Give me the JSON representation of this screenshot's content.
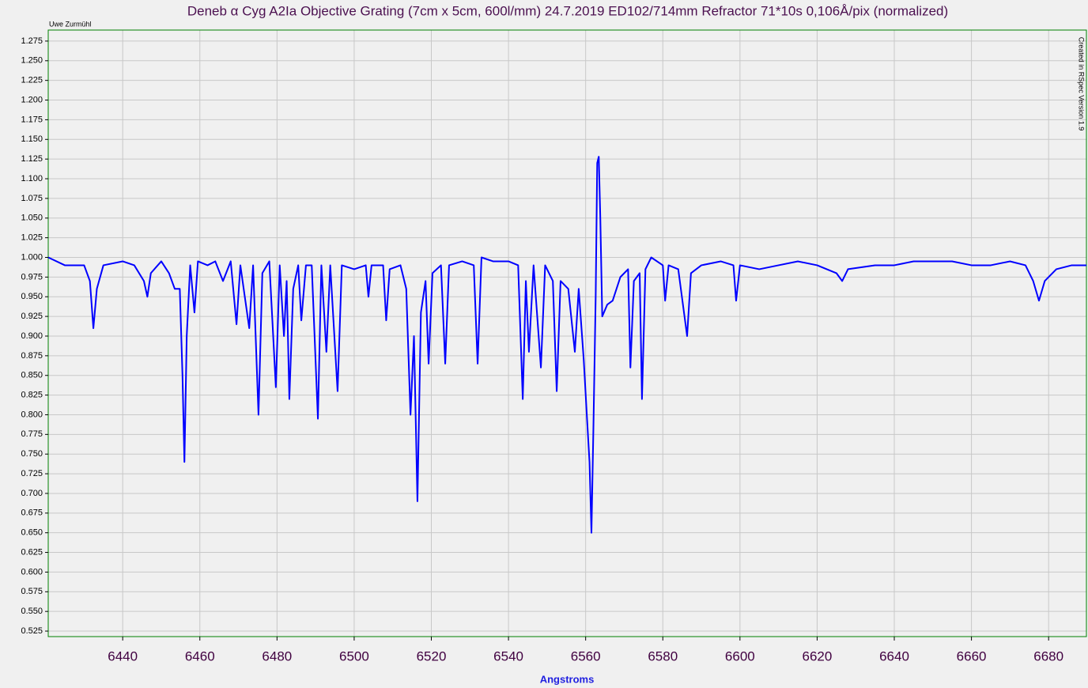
{
  "chart_data": {
    "type": "line",
    "title": "Deneb  α Cyg  A2Ia Objective Grating (7cm x 5cm, 600l/mm)  24.7.2019  ED102/714mm  Refractor 71*10s  0,106Å/pix  (normalized)",
    "author": "Uwe Zurmühl",
    "credit": "Created in RSpec Version 1.9",
    "x_label": "Angstroms",
    "color": "#0000ff",
    "grid": true,
    "xlim": [
      6420.7,
      6689.8
    ],
    "ylim": [
      0.518,
      1.289
    ],
    "xticks": [
      6440,
      6460,
      6480,
      6500,
      6520,
      6540,
      6560,
      6580,
      6600,
      6620,
      6640,
      6660,
      6680
    ],
    "yticks": [
      0.525,
      {
        "value": 0.55,
        "label": "0.550"
      },
      0.575,
      {
        "value": 0.6,
        "label": "0.600"
      },
      0.625,
      {
        "value": 0.65,
        "label": "0.650"
      },
      0.675,
      {
        "value": 0.7,
        "label": "0.700"
      },
      0.725,
      {
        "value": 0.75,
        "label": "0.750"
      },
      0.775,
      {
        "value": 0.8,
        "label": "0.800"
      },
      0.825,
      {
        "value": 0.85,
        "label": "0.850"
      },
      0.875,
      {
        "value": 0.9,
        "label": "0.900"
      },
      0.925,
      {
        "value": 0.95,
        "label": "0.950"
      },
      0.975,
      {
        "value": 1.0,
        "label": "1.000"
      },
      1.025,
      {
        "value": 1.05,
        "label": "1.050"
      },
      1.075,
      {
        "value": 1.1,
        "label": "1.100"
      },
      1.125,
      {
        "value": 1.15,
        "label": "1.150"
      },
      1.175,
      {
        "value": 1.2,
        "label": "1.200"
      },
      1.225,
      {
        "value": 1.25,
        "label": "1.250"
      },
      1.275
    ],
    "x": [
      6420.7,
      6425,
      6430,
      6431.5,
      6432.4,
      6433.3,
      6435,
      6440,
      6443,
      6445.5,
      6446.4,
      6447.3,
      6450,
      6452,
      6453.5,
      6454.8,
      6455.5,
      6456.0,
      6456.6,
      6457.5,
      6458.6,
      6459.5,
      6462,
      6464,
      6466,
      6468,
      6469.5,
      6470.5,
      6472.8,
      6473.8,
      6475.2,
      6476.2,
      6478,
      6479.7,
      6480.7,
      6481.8,
      6482.5,
      6483.2,
      6484.2,
      6485.5,
      6486.3,
      6487.5,
      6489,
      6490.6,
      6491.5,
      6492.8,
      6493.8,
      6495.7,
      6496.8,
      6500,
      6503,
      6503.7,
      6504.5,
      6507.5,
      6508.3,
      6509.2,
      6512,
      6513.5,
      6514.6,
      6515.5,
      6516.4,
      6517.3,
      6518.5,
      6519.3,
      6520.3,
      6522.5,
      6523.6,
      6524.6,
      6528,
      6531,
      6532.0,
      6533,
      6536,
      6540,
      6542.5,
      6543.7,
      6544.5,
      6545.3,
      6546.5,
      6548.4,
      6549.5,
      6551.5,
      6552.5,
      6553.5,
      6555.5,
      6557.2,
      6558.2,
      6559.5,
      6560.3,
      6561.0,
      6561.5,
      6562.0,
      6562.6,
      6563.0,
      6563.4,
      6563.8,
      6564.3,
      6565.6,
      6567,
      6569,
      6571,
      6571.6,
      6572.5,
      6574,
      6574.6,
      6575.5,
      6577,
      6580,
      6580.6,
      6581.5,
      6584,
      6586.3,
      6587.3,
      6590,
      6595,
      6598.3,
      6599.0,
      6600,
      6605,
      6610,
      6615,
      6620,
      6625,
      6626.5,
      6628,
      6635,
      6640,
      6645,
      6650,
      6655,
      6660,
      6665,
      6670,
      6674,
      6676,
      6677.5,
      6679,
      6682,
      6686,
      6689.8
    ],
    "values": [
      1.0,
      0.99,
      0.99,
      0.97,
      0.91,
      0.96,
      0.99,
      0.995,
      0.99,
      0.97,
      0.95,
      0.98,
      0.995,
      0.98,
      0.96,
      0.96,
      0.85,
      0.74,
      0.9,
      0.99,
      0.93,
      0.995,
      0.99,
      0.995,
      0.97,
      0.995,
      0.915,
      0.99,
      0.91,
      0.99,
      0.8,
      0.98,
      0.995,
      0.835,
      0.99,
      0.9,
      0.97,
      0.82,
      0.96,
      0.99,
      0.92,
      0.99,
      0.99,
      0.795,
      0.99,
      0.88,
      0.99,
      0.83,
      0.99,
      0.985,
      0.99,
      0.95,
      0.99,
      0.99,
      0.92,
      0.985,
      0.99,
      0.96,
      0.8,
      0.9,
      0.69,
      0.93,
      0.97,
      0.865,
      0.98,
      0.99,
      0.865,
      0.99,
      0.995,
      0.99,
      0.865,
      1.0,
      0.995,
      0.995,
      0.99,
      0.82,
      0.97,
      0.88,
      0.99,
      0.86,
      0.99,
      0.97,
      0.83,
      0.97,
      0.96,
      0.88,
      0.96,
      0.87,
      0.8,
      0.74,
      0.65,
      0.78,
      0.95,
      1.12,
      1.128,
      1.05,
      0.925,
      0.94,
      0.945,
      0.975,
      0.985,
      0.86,
      0.97,
      0.98,
      0.82,
      0.985,
      1.0,
      0.99,
      0.945,
      0.99,
      0.985,
      0.9,
      0.98,
      0.99,
      0.995,
      0.99,
      0.945,
      0.99,
      0.985,
      0.99,
      0.995,
      0.99,
      0.98,
      0.97,
      0.985,
      0.99,
      0.99,
      0.995,
      0.995,
      0.995,
      0.99,
      0.99,
      0.995,
      0.99,
      0.97,
      0.945,
      0.97,
      0.985,
      0.99,
      0.99
    ]
  }
}
